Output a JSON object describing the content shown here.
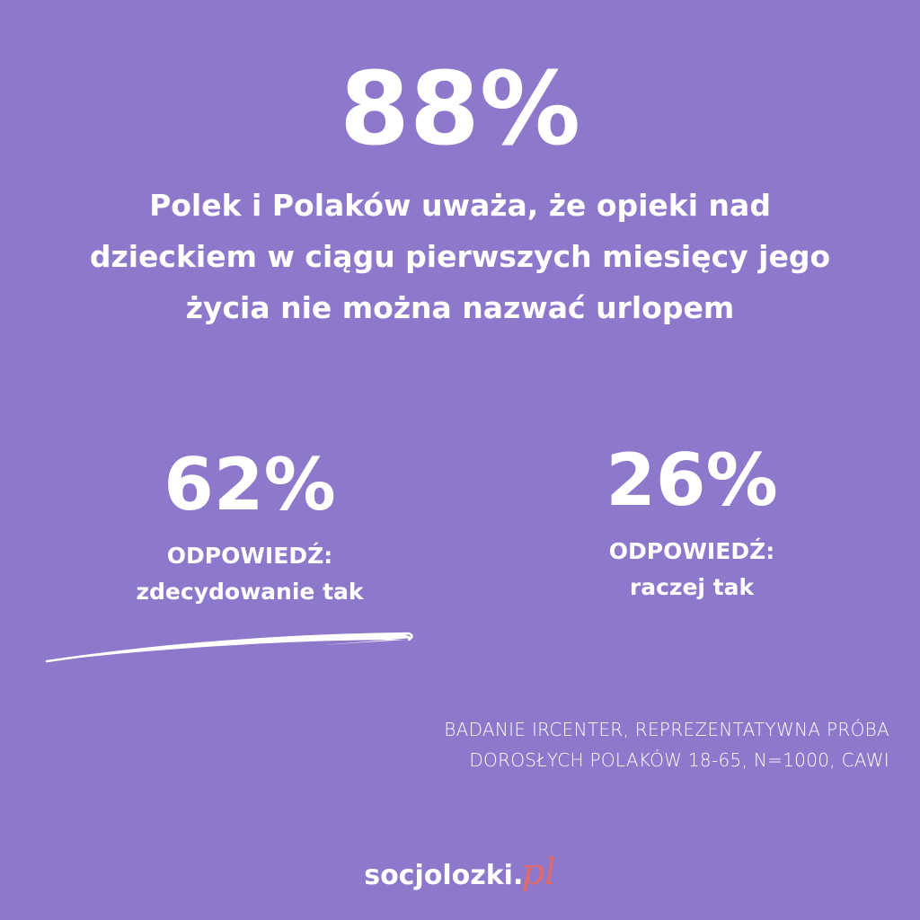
{
  "main": {
    "headline_percent": "88%",
    "headline_text": "Polek i Polaków uważa, że opieki nad dzieckiem w ciągu pierwszych miesięcy jego życia nie można nazwać urlopem"
  },
  "stats": [
    {
      "percent": "62%",
      "label": "ODPOWIEDŹ:",
      "answer": "zdecydowanie tak"
    },
    {
      "percent": "26%",
      "label": "ODPOWIEDŹ:",
      "answer": "raczej tak"
    }
  ],
  "source": {
    "line1": "BADANIE IRCENTER, REPREZENTATYWNA PRÓBA",
    "line2": "DOROSŁYCH POLAKÓW 18-65, N=1000, CAWI"
  },
  "logo": {
    "name": "socjolozki",
    "suffix": "pl"
  },
  "colors": {
    "background": "#8d78cc",
    "text": "#ffffff",
    "logo_accent": "#e06a6a"
  }
}
